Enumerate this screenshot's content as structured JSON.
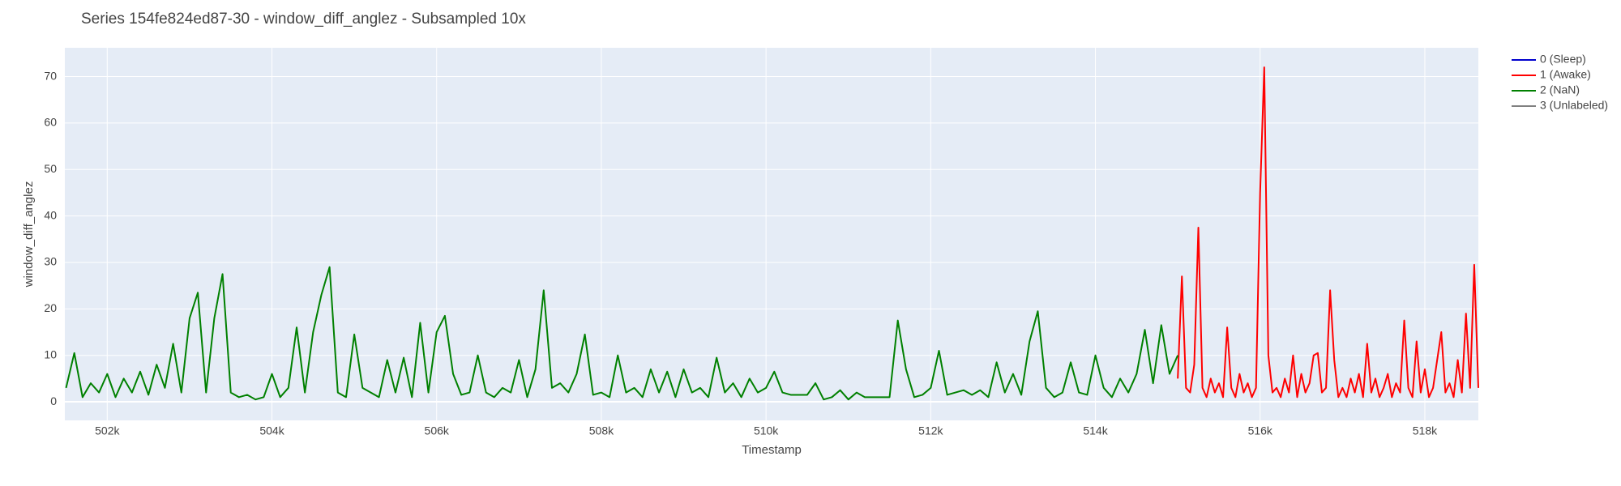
{
  "chart_data": {
    "type": "line",
    "title": "Series 154fe824ed87-30 - window_diff_anglez - Subsampled 10x",
    "x_label": "Timestamp",
    "y_label": "window_diff_anglez",
    "xlim": [
      501485,
      518650
    ],
    "ylim": [
      -4,
      76.2
    ],
    "xticks": [
      {
        "value": 502000,
        "label": "502k"
      },
      {
        "value": 504000,
        "label": "504k"
      },
      {
        "value": 506000,
        "label": "506k"
      },
      {
        "value": 508000,
        "label": "508k"
      },
      {
        "value": 510000,
        "label": "510k"
      },
      {
        "value": 512000,
        "label": "512k"
      },
      {
        "value": 514000,
        "label": "514k"
      },
      {
        "value": 516000,
        "label": "516k"
      },
      {
        "value": 518000,
        "label": "518k"
      }
    ],
    "yticks": [
      0,
      10,
      20,
      30,
      40,
      50,
      60,
      70
    ],
    "grid": true,
    "legend": "right",
    "series": [
      {
        "name": "0 (Sleep)",
        "color": "#0000cd",
        "x": [],
        "values": []
      },
      {
        "name": "1 (Awake)",
        "color": "#ff0000",
        "x": [
          515000,
          515050,
          515100,
          515150,
          515200,
          515250,
          515300,
          515350,
          515400,
          515450,
          515500,
          515550,
          515600,
          515650,
          515700,
          515750,
          515800,
          515850,
          515900,
          515950,
          516000,
          516050,
          516100,
          516150,
          516200,
          516250,
          516300,
          516350,
          516400,
          516450,
          516500,
          516550,
          516600,
          516650,
          516700,
          516750,
          516800,
          516850,
          516900,
          516950,
          517000,
          517050,
          517100,
          517150,
          517200,
          517250,
          517300,
          517350,
          517400,
          517450,
          517500,
          517550,
          517600,
          517650,
          517700,
          517750,
          517800,
          517850,
          517900,
          517950,
          518000,
          518050,
          518100,
          518150,
          518200,
          518250,
          518300,
          518350,
          518400,
          518450,
          518500,
          518550,
          518600,
          518650
        ],
        "values": [
          5,
          27,
          3,
          2,
          8,
          37.5,
          3,
          1,
          5,
          2,
          4,
          1,
          16,
          3,
          1,
          6,
          2,
          4,
          1,
          3,
          45,
          72,
          10,
          2,
          3,
          1,
          5,
          2,
          10,
          1,
          6,
          2,
          4,
          10,
          10.5,
          2,
          3,
          24,
          9,
          1,
          3,
          1,
          5,
          2,
          6,
          1,
          12.5,
          2,
          5,
          1,
          3,
          6,
          1,
          4,
          2,
          17.5,
          3,
          1,
          13,
          2,
          7,
          1,
          3,
          9,
          15,
          2,
          4,
          1,
          9,
          2,
          19,
          3,
          29.5,
          3
        ]
      },
      {
        "name": "2 (NaN)",
        "color": "#008000",
        "x": [
          501500,
          501600,
          501700,
          501800,
          501900,
          502000,
          502100,
          502200,
          502300,
          502400,
          502500,
          502600,
          502700,
          502800,
          502900,
          503000,
          503100,
          503200,
          503300,
          503400,
          503500,
          503600,
          503700,
          503800,
          503900,
          504000,
          504100,
          504200,
          504300,
          504400,
          504500,
          504600,
          504700,
          504800,
          504900,
          505000,
          505100,
          505200,
          505300,
          505400,
          505500,
          505600,
          505700,
          505800,
          505900,
          506000,
          506100,
          506200,
          506300,
          506400,
          506500,
          506600,
          506700,
          506800,
          506900,
          507000,
          507100,
          507200,
          507300,
          507400,
          507500,
          507600,
          507700,
          507800,
          507900,
          508000,
          508100,
          508200,
          508300,
          508400,
          508500,
          508600,
          508700,
          508800,
          508900,
          509000,
          509100,
          509200,
          509300,
          509400,
          509500,
          509600,
          509700,
          509800,
          509900,
          510000,
          510100,
          510200,
          510300,
          510400,
          510500,
          510600,
          510700,
          510800,
          510900,
          511000,
          511100,
          511200,
          511300,
          511400,
          511500,
          511600,
          511700,
          511800,
          511900,
          512000,
          512100,
          512200,
          512300,
          512400,
          512500,
          512600,
          512700,
          512800,
          512900,
          513000,
          513100,
          513200,
          513300,
          513400,
          513500,
          513600,
          513700,
          513800,
          513900,
          514000,
          514100,
          514200,
          514300,
          514400,
          514500,
          514600,
          514700,
          514800,
          514900,
          515000
        ],
        "values": [
          3,
          10.5,
          1,
          4,
          2,
          6,
          1,
          5,
          2,
          6.5,
          1.5,
          8,
          3,
          12.5,
          2,
          18,
          23.5,
          2,
          18,
          27.5,
          2,
          1,
          1.5,
          0.5,
          1,
          6,
          1,
          3,
          16,
          2,
          15,
          23,
          29,
          2,
          1,
          14.5,
          3,
          2,
          1,
          9,
          2,
          9.5,
          1,
          17,
          2,
          15,
          18.5,
          6,
          1.5,
          2,
          10,
          2,
          1,
          3,
          2,
          9,
          1,
          7,
          24,
          3,
          4,
          2,
          6,
          14.5,
          1.5,
          2,
          1,
          10,
          2,
          3,
          1,
          7,
          2,
          6.5,
          1,
          7,
          2,
          3,
          1,
          9.5,
          2,
          4,
          1,
          5,
          2,
          3,
          6.5,
          2,
          1.5,
          1.5,
          1.5,
          4,
          0.5,
          1,
          2.5,
          0.5,
          2,
          1,
          1,
          1,
          1,
          17.5,
          7,
          1,
          1.5,
          3,
          11,
          1.5,
          2,
          2.5,
          1.5,
          2.5,
          1,
          8.5,
          2,
          6,
          1.5,
          13,
          19.5,
          3,
          1,
          2,
          8.5,
          2,
          1.5,
          10,
          3,
          1,
          5,
          2,
          6,
          15.5,
          4,
          16.5,
          6,
          10
        ]
      },
      {
        "name": "3 (Unlabeled)",
        "color": "#808080",
        "x": [],
        "values": []
      }
    ]
  }
}
